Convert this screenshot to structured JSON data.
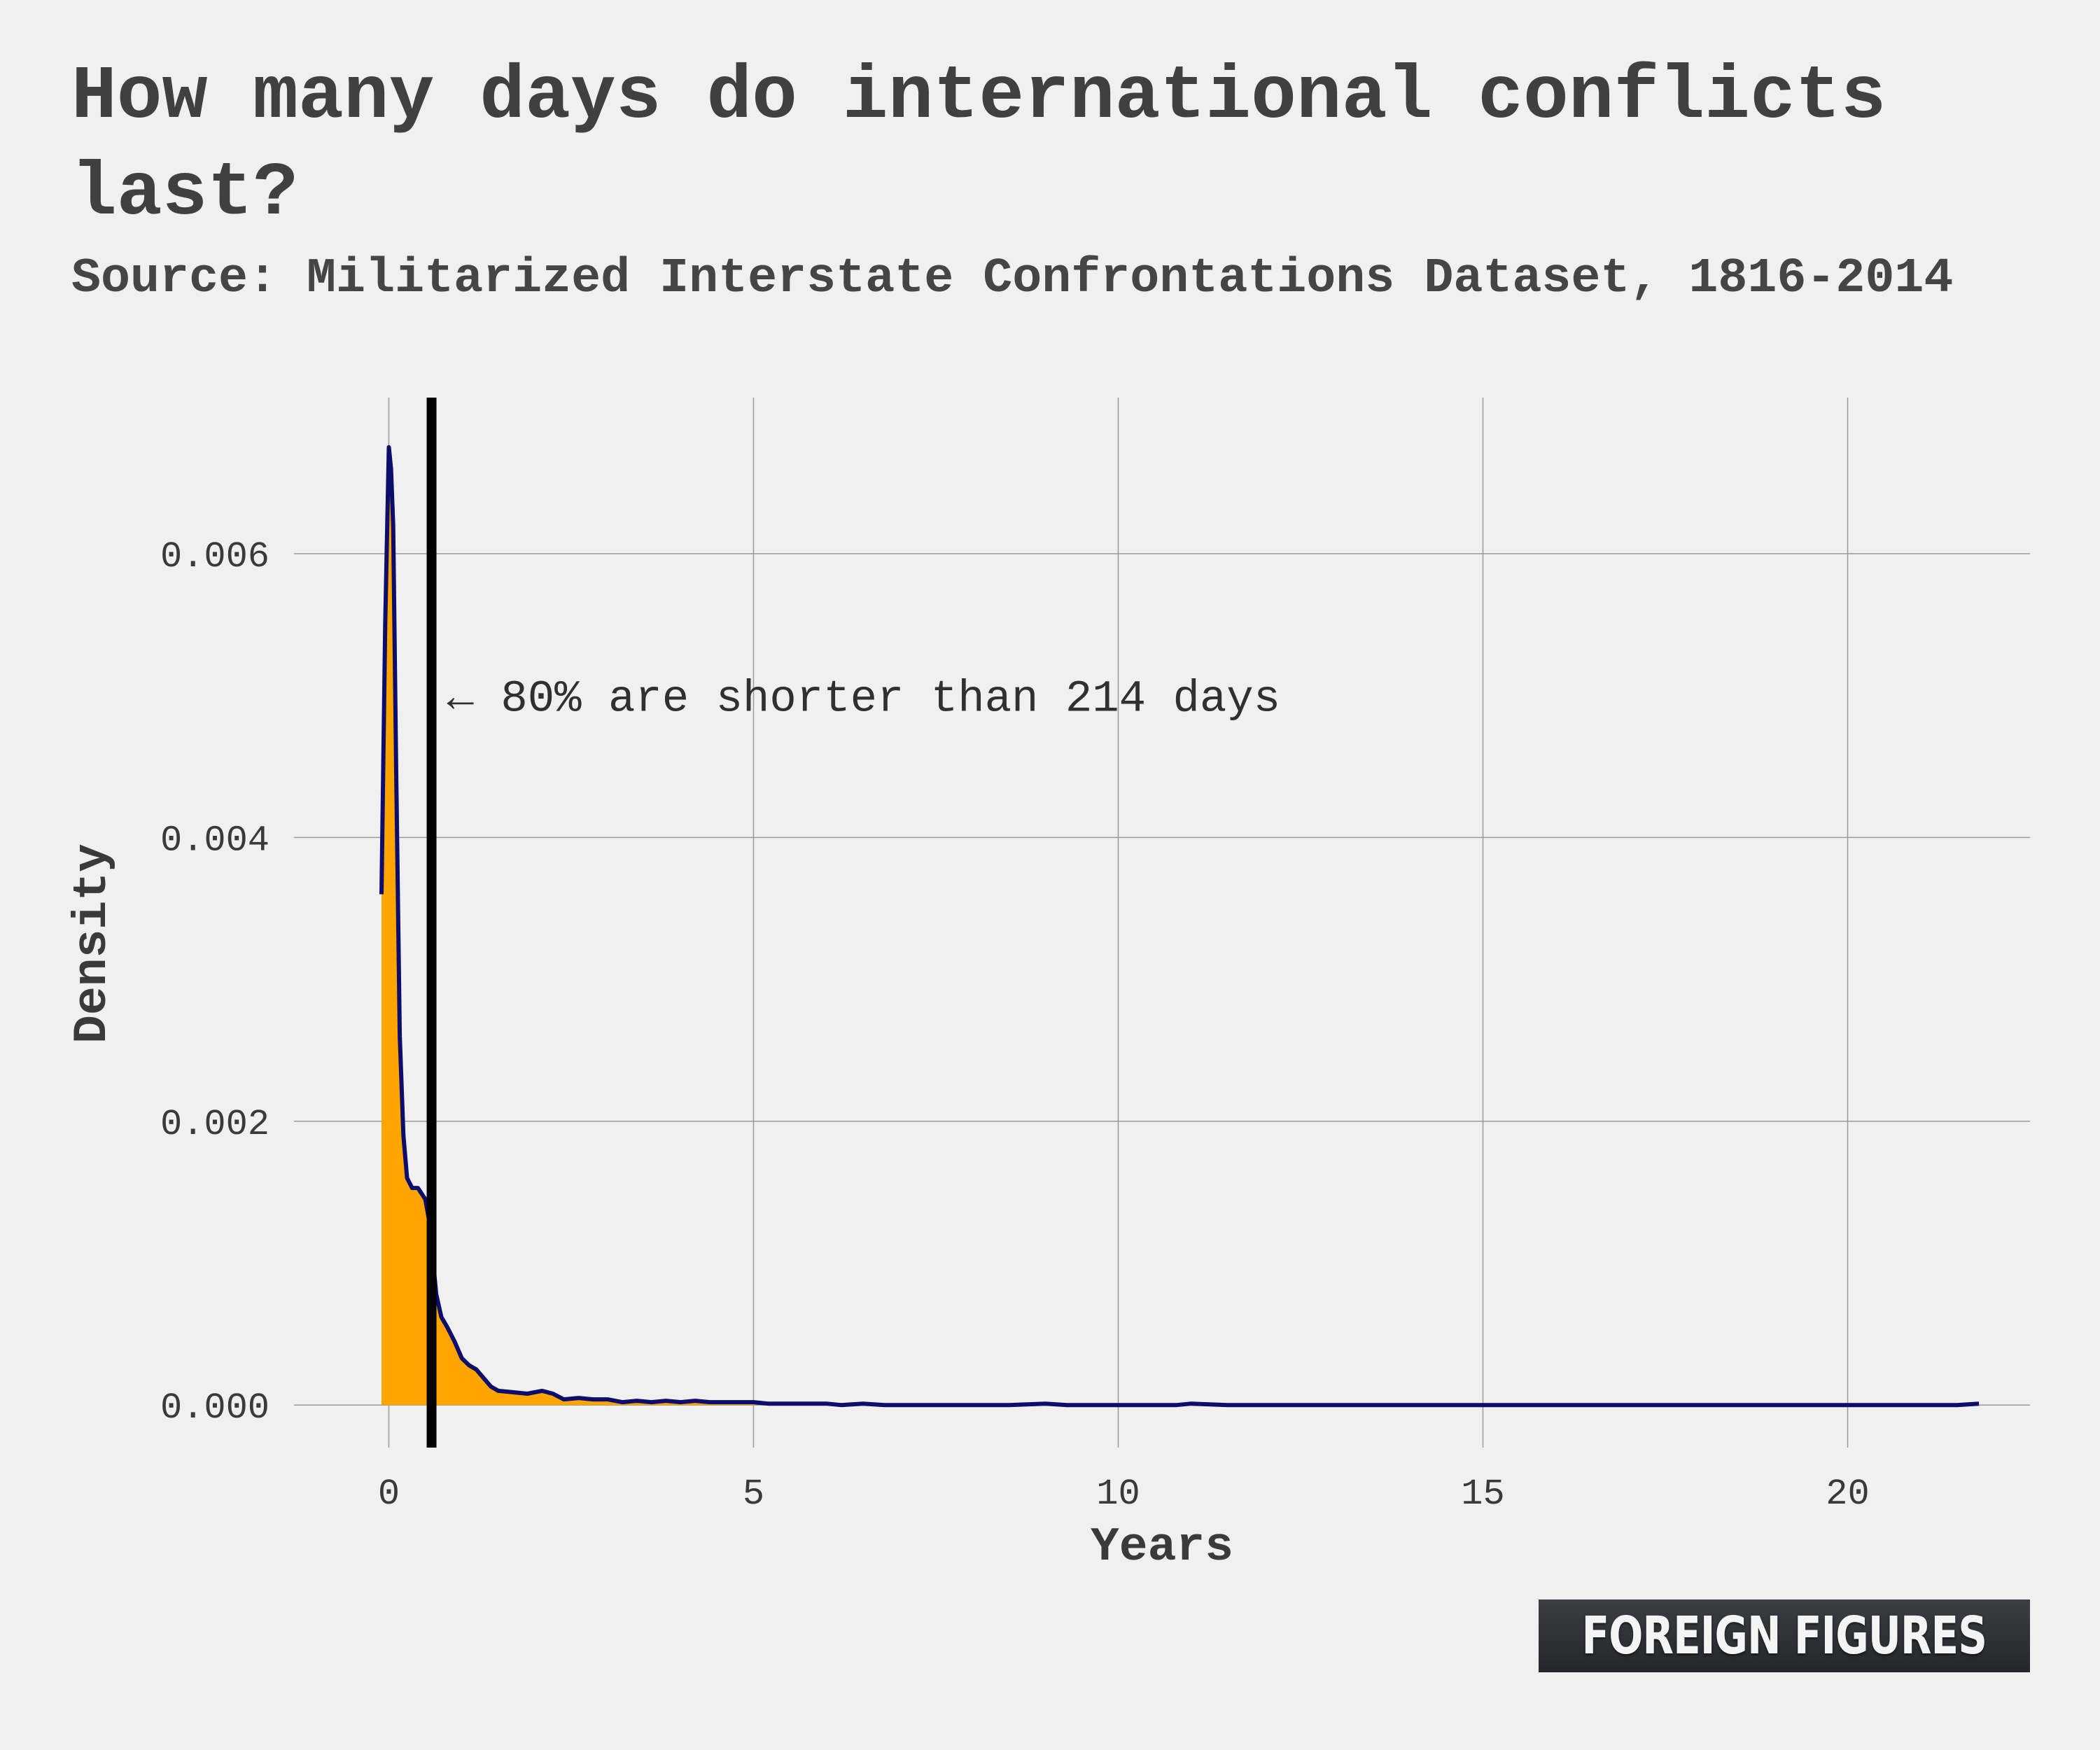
{
  "header": {
    "title": "How many days do international conflicts last?",
    "subtitle": "Source: Militarized Interstate Confrontations Dataset, 1816-2014"
  },
  "logo": {
    "text": "FOREIGN FIGURES"
  },
  "colors": {
    "line": "#0d0d6b",
    "fill": "#ffa500",
    "marker": "#000000",
    "grid": "#9a9a9a",
    "background": "#f0f0f0"
  },
  "chart_data": {
    "type": "area",
    "xlabel": "Years",
    "ylabel": "Density",
    "xlim": [
      -1.3,
      22.5
    ],
    "ylim": [
      -0.0003,
      0.0071
    ],
    "xticks": [
      0,
      5,
      10,
      15,
      20
    ],
    "xtick_labels": [
      "0",
      "5",
      "10",
      "15",
      "20"
    ],
    "yticks": [
      0,
      0.002,
      0.004,
      0.006
    ],
    "ytick_labels": [
      "0.000",
      "0.002",
      "0.004",
      "0.006"
    ],
    "grid": true,
    "legend": "none",
    "marker_line": {
      "x": 0.586,
      "label": "←  80% are shorter than 214 days",
      "label_y": 0.005
    },
    "fill_until_x": 5.0,
    "series": [
      {
        "x": [
          -0.1,
          -0.05,
          0.0,
          0.03,
          0.06,
          0.1,
          0.15,
          0.2,
          0.25,
          0.32,
          0.4,
          0.5,
          0.56,
          0.6,
          0.65,
          0.72,
          0.8,
          0.9,
          1.0,
          1.1,
          1.2,
          1.3,
          1.4,
          1.5,
          1.7,
          1.9,
          2.1,
          2.25,
          2.4,
          2.6,
          2.8,
          3.0,
          3.2,
          3.4,
          3.6,
          3.8,
          4.0,
          4.2,
          4.4,
          4.6,
          4.8,
          5.0,
          5.2,
          5.4,
          5.6,
          5.8,
          6.0,
          6.2,
          6.5,
          6.8,
          7.1,
          7.4,
          7.7,
          8.0,
          8.5,
          9.0,
          9.3,
          9.6,
          10.0,
          10.5,
          10.8,
          11.0,
          11.5,
          12.0,
          12.5,
          13.0,
          14.0,
          15.0,
          16.0,
          17.0,
          18.0,
          19.0,
          20.0,
          21.0,
          21.5,
          21.8
        ],
        "y": [
          0.0036,
          0.0055,
          0.00675,
          0.0066,
          0.0062,
          0.0045,
          0.0026,
          0.0019,
          0.0016,
          0.00153,
          0.00153,
          0.00145,
          0.00128,
          0.00105,
          0.00078,
          0.00062,
          0.00055,
          0.00045,
          0.00033,
          0.00028,
          0.00025,
          0.00019,
          0.00013,
          0.0001,
          9e-05,
          8e-05,
          0.0001,
          8e-05,
          4e-05,
          5e-05,
          4e-05,
          4e-05,
          2e-05,
          3e-05,
          2e-05,
          3e-05,
          2e-05,
          3e-05,
          2e-05,
          2e-05,
          2e-05,
          2e-05,
          1e-05,
          1e-05,
          1e-05,
          1e-05,
          1e-05,
          0.0,
          1e-05,
          0.0,
          0.0,
          0.0,
          0.0,
          0.0,
          0.0,
          1e-05,
          0.0,
          0.0,
          0.0,
          0.0,
          0.0,
          1e-05,
          0.0,
          0.0,
          0.0,
          0.0,
          0.0,
          0.0,
          0.0,
          0.0,
          0.0,
          0.0,
          0.0,
          0.0,
          0.0,
          1e-05
        ]
      }
    ]
  }
}
